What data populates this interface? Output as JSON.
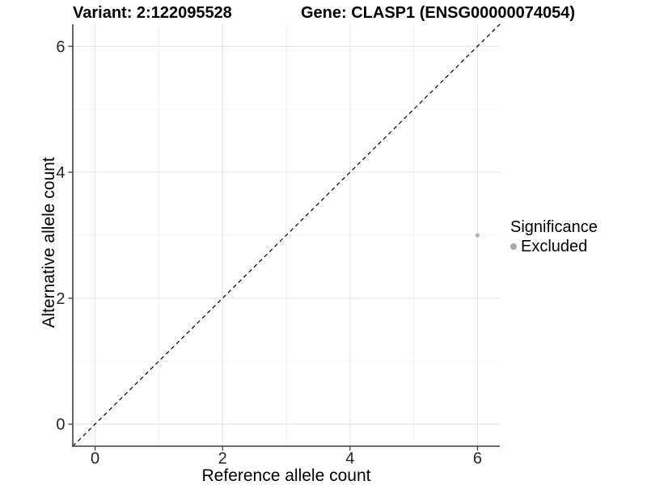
{
  "chart_data": {
    "type": "scatter",
    "title_left": "Variant: 2:122095528",
    "title_right": "Gene: CLASP1 (ENSG00000074054)",
    "xlabel": "Reference allele count",
    "ylabel": "Alternative allele count",
    "xlim": [
      -0.35,
      6.35
    ],
    "ylim": [
      -0.35,
      6.35
    ],
    "x_major_ticks": [
      0,
      2,
      4,
      6
    ],
    "x_minor_ticks": [
      1,
      3,
      5
    ],
    "y_major_ticks": [
      0,
      2,
      4,
      6
    ],
    "y_minor_ticks": [
      1,
      3,
      5
    ],
    "grid": "major+minor",
    "reference_line": {
      "kind": "identity",
      "slope": 1,
      "intercept": 0,
      "style": "dashed",
      "color": "#000000"
    },
    "series": [
      {
        "name": "Excluded",
        "color": "#b5b5b5",
        "points": [
          {
            "x": 6,
            "y": 3
          }
        ]
      }
    ],
    "legend": {
      "title": "Significance",
      "position": "right",
      "entries": [
        {
          "label": "Excluded",
          "color": "#a9a9a9"
        }
      ]
    },
    "colors": {
      "background": "#ffffff",
      "grid_major": "#e5e5e5",
      "grid_minor": "#f2f2f2",
      "axis_line": "#404040",
      "tick_label": "#262626"
    }
  }
}
